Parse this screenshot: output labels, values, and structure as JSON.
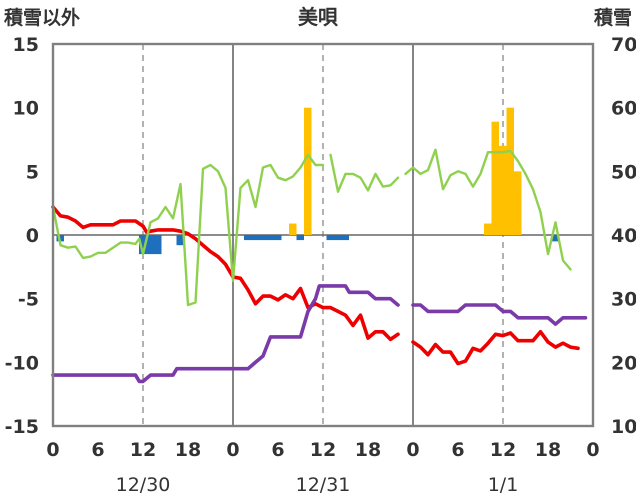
{
  "chart_data": {
    "type": "line",
    "title": "美唄",
    "left_axis_label": "積雪以外",
    "right_axis_label": "積雪",
    "left_ylim": [
      -15,
      15
    ],
    "left_yticks": [
      15,
      10,
      5,
      0,
      -5,
      -10,
      -15
    ],
    "right_ylim": [
      10,
      70
    ],
    "right_yticks": [
      70,
      60,
      50,
      40,
      30,
      20,
      10
    ],
    "x_hour_range": [
      0,
      72
    ],
    "x_tick_labels": [
      "0",
      "6",
      "12",
      "18",
      "0",
      "6",
      "12",
      "18",
      "0",
      "6",
      "12",
      "18",
      "0"
    ],
    "date_labels": [
      "12/30",
      "12/31",
      "1/1"
    ],
    "grid": true,
    "colors": {
      "temperature": "#ee0000",
      "dew_point": "#7a3aa8",
      "humidity_index": "#8fd14f",
      "precipitation": "#ffc000",
      "negative_bar": "#1f6fbf",
      "grid": "#666666",
      "plot_border": "#808080"
    },
    "series": [
      {
        "key": "temperature",
        "axis": "left",
        "points": [
          [
            0,
            2.2
          ],
          [
            1,
            1.5
          ],
          [
            2,
            1.4
          ],
          [
            3,
            1.1
          ],
          [
            4,
            0.6
          ],
          [
            5,
            0.8
          ],
          [
            6,
            0.8
          ],
          [
            7,
            0.8
          ],
          [
            8,
            0.8
          ],
          [
            9,
            1.1
          ],
          [
            10,
            1.1
          ],
          [
            11,
            1.1
          ],
          [
            12,
            0.7
          ],
          [
            12.5,
            0.2
          ],
          [
            13,
            0.3
          ],
          [
            14,
            0.4
          ],
          [
            15,
            0.4
          ],
          [
            16,
            0.4
          ],
          [
            17,
            0.3
          ],
          [
            18,
            0.1
          ],
          [
            19,
            -0.3
          ],
          [
            20,
            -0.8
          ],
          [
            21,
            -1.3
          ],
          [
            22,
            -1.7
          ],
          [
            23,
            -2.3
          ],
          [
            24,
            -3.3
          ],
          [
            25,
            -3.4
          ],
          [
            26,
            -4.3
          ],
          [
            27,
            -5.4
          ],
          [
            28,
            -4.8
          ],
          [
            29,
            -4.8
          ],
          [
            30,
            -5.1
          ],
          [
            31,
            -4.7
          ],
          [
            32,
            -5.0
          ],
          [
            33,
            -4.2
          ],
          [
            34,
            -5.7
          ],
          [
            35,
            -5.4
          ],
          [
            36,
            -5.7
          ],
          [
            37,
            -5.7
          ],
          [
            38,
            -6.0
          ],
          [
            39,
            -6.3
          ],
          [
            40,
            -7.1
          ],
          [
            41,
            -6.3
          ],
          [
            42,
            -8.1
          ],
          [
            43,
            -7.6
          ],
          [
            44,
            -7.6
          ],
          [
            45,
            -8.2
          ],
          [
            46,
            -7.8
          ],
          [
            null,
            null
          ],
          [
            48,
            -8.4
          ],
          [
            49,
            -8.8
          ],
          [
            50,
            -9.4
          ],
          [
            51,
            -8.6
          ],
          [
            52,
            -9.2
          ],
          [
            53,
            -9.2
          ],
          [
            54,
            -10.1
          ],
          [
            55,
            -9.9
          ],
          [
            56,
            -8.9
          ],
          [
            57,
            -9.1
          ],
          [
            58,
            -8.5
          ],
          [
            59,
            -7.8
          ],
          [
            60,
            -7.9
          ],
          [
            61,
            -7.7
          ],
          [
            62,
            -8.3
          ],
          [
            63,
            -8.3
          ],
          [
            64,
            -8.3
          ],
          [
            65,
            -7.6
          ],
          [
            66,
            -8.4
          ],
          [
            67,
            -8.8
          ],
          [
            68,
            -8.5
          ],
          [
            69,
            -8.8
          ],
          [
            70,
            -8.9
          ]
        ]
      },
      {
        "key": "dew_point",
        "axis": "left",
        "points": [
          [
            0,
            -11
          ],
          [
            11,
            -11
          ],
          [
            11.5,
            -11.5
          ],
          [
            12,
            -11.5
          ],
          [
            13,
            -11
          ],
          [
            16,
            -11
          ],
          [
            16.5,
            -10.5
          ],
          [
            26,
            -10.5
          ],
          [
            27,
            -10
          ],
          [
            28,
            -9.5
          ],
          [
            29,
            -8
          ],
          [
            33,
            -8
          ],
          [
            34,
            -6
          ],
          [
            35,
            -5
          ],
          [
            35.5,
            -4
          ],
          [
            39,
            -4
          ],
          [
            39.5,
            -4.5
          ],
          [
            42,
            -4.5
          ],
          [
            43,
            -5
          ],
          [
            45,
            -5
          ],
          [
            46,
            -5.5
          ],
          [
            null,
            null
          ],
          [
            48,
            -5.5
          ],
          [
            49,
            -5.5
          ],
          [
            50,
            -6
          ],
          [
            54,
            -6
          ],
          [
            55,
            -5.5
          ],
          [
            59,
            -5.5
          ],
          [
            60,
            -6
          ],
          [
            61,
            -6
          ],
          [
            62,
            -6.5
          ],
          [
            66,
            -6.5
          ],
          [
            67,
            -7
          ],
          [
            68,
            -6.5
          ],
          [
            71,
            -6.5
          ]
        ]
      },
      {
        "key": "humidity_index",
        "axis": "left",
        "points": [
          [
            0,
            2.2
          ],
          [
            1,
            -0.8
          ],
          [
            2,
            -1.0
          ],
          [
            3,
            -0.9
          ],
          [
            4,
            -1.8
          ],
          [
            5,
            -1.7
          ],
          [
            6,
            -1.4
          ],
          [
            7,
            -1.4
          ],
          [
            8,
            -1.0
          ],
          [
            9,
            -0.6
          ],
          [
            10,
            -0.6
          ],
          [
            11,
            -0.7
          ],
          [
            11.5,
            -0.3
          ],
          [
            12,
            -1.5
          ],
          [
            13,
            1.0
          ],
          [
            14,
            1.3
          ],
          [
            15,
            2.2
          ],
          [
            16,
            1.3
          ],
          [
            17,
            4.0
          ],
          [
            18,
            -5.5
          ],
          [
            19,
            -5.3
          ],
          [
            20,
            5.2
          ],
          [
            21,
            5.5
          ],
          [
            22,
            5.0
          ],
          [
            23,
            3.7
          ],
          [
            24,
            -3.6
          ],
          [
            25,
            3.7
          ],
          [
            26,
            4.3
          ],
          [
            27,
            2.2
          ],
          [
            28,
            5.3
          ],
          [
            29,
            5.5
          ],
          [
            30,
            4.5
          ],
          [
            31,
            4.3
          ],
          [
            32,
            4.6
          ],
          [
            33,
            5.3
          ],
          [
            34,
            6.3
          ],
          [
            35,
            5.5
          ],
          [
            36,
            5.5
          ],
          [
            null,
            null
          ],
          [
            37,
            6.3
          ],
          [
            38,
            3.4
          ],
          [
            39,
            4.8
          ],
          [
            40,
            4.8
          ],
          [
            41,
            4.5
          ],
          [
            42,
            3.5
          ],
          [
            43,
            4.8
          ],
          [
            44,
            3.8
          ],
          [
            45,
            3.9
          ],
          [
            46,
            4.5
          ],
          [
            null,
            null
          ],
          [
            47,
            4.8
          ],
          [
            48,
            5.3
          ],
          [
            49,
            4.8
          ],
          [
            50,
            5.1
          ],
          [
            51,
            6.7
          ],
          [
            52,
            3.6
          ],
          [
            53,
            4.7
          ],
          [
            54,
            5.0
          ],
          [
            55,
            4.8
          ],
          [
            56,
            3.8
          ],
          [
            57,
            4.8
          ],
          [
            58,
            6.5
          ],
          [
            59,
            6.5
          ],
          [
            60,
            6.5
          ],
          [
            61,
            6.6
          ],
          [
            62,
            5.8
          ],
          [
            63,
            4.8
          ],
          [
            64,
            3.6
          ],
          [
            65,
            1.8
          ],
          [
            66,
            -1.5
          ],
          [
            67,
            1.0
          ],
          [
            68,
            -2.0
          ],
          [
            69,
            -2.7
          ]
        ]
      }
    ],
    "bars": [
      {
        "key": "precipitation",
        "axis": "left",
        "x": [
          32,
          34,
          58,
          59,
          60,
          61,
          62
        ],
        "values": [
          0.9,
          10.0,
          0.9,
          8.9,
          7.0,
          10.0,
          5.0
        ]
      },
      {
        "key": "negative_bar",
        "axis": "left",
        "x": [
          1,
          12,
          13,
          14,
          17,
          26,
          27,
          28,
          29,
          30,
          33,
          37,
          38,
          39,
          67
        ],
        "values": [
          -0.5,
          -1.5,
          -1.5,
          -1.5,
          -0.8,
          -0.4,
          -0.4,
          -0.4,
          -0.4,
          -0.4,
          -0.4,
          -0.4,
          -0.4,
          -0.4,
          -0.5
        ]
      }
    ]
  }
}
